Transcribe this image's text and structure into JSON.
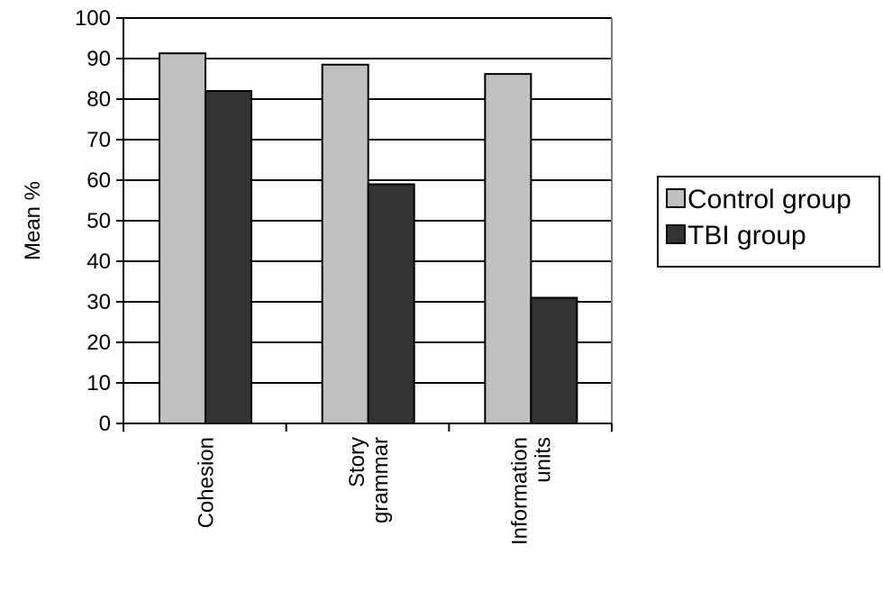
{
  "chart_data": {
    "type": "bar",
    "ylabel": "Mean %",
    "ylim": [
      0,
      100
    ],
    "yticks": [
      0,
      10,
      20,
      30,
      40,
      50,
      60,
      70,
      80,
      90,
      100
    ],
    "grid": true,
    "legend_position": "right",
    "categories": [
      {
        "lines": [
          "Cohesion"
        ]
      },
      {
        "lines": [
          "Story",
          "grammar"
        ]
      },
      {
        "lines": [
          "Information",
          "units"
        ]
      }
    ],
    "series": [
      {
        "name": "Control group",
        "color": "#c0c0c0",
        "values": [
          91.3,
          88.5,
          86.2
        ]
      },
      {
        "name": "TBI group",
        "color": "#333333",
        "values": [
          82.0,
          59.0,
          31.0
        ]
      }
    ]
  }
}
